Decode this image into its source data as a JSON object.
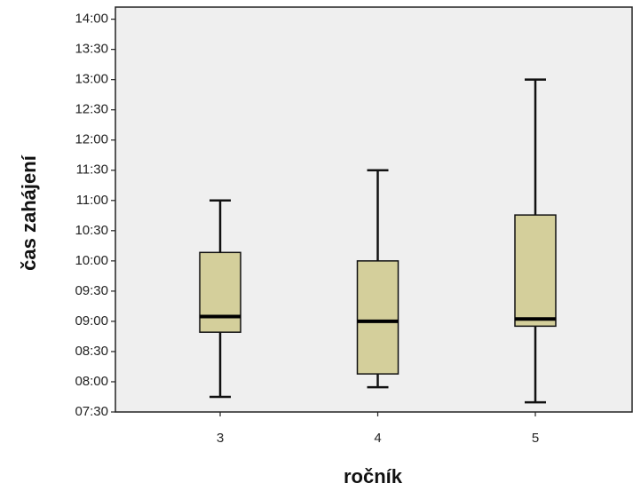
{
  "chart_data": {
    "type": "box",
    "x_label": "ročník",
    "y_label": "čas zahájení",
    "categories": [
      "3",
      "4",
      "5"
    ],
    "min": [
      7.75,
      7.91,
      7.66
    ],
    "q1": [
      8.82,
      8.13,
      8.92
    ],
    "median": [
      9.08,
      9.0,
      9.04
    ],
    "q3": [
      10.14,
      10.0,
      10.76
    ],
    "max": [
      11.0,
      11.5,
      13.0
    ],
    "color": "#d4cf9b",
    "ylim": [
      7.5,
      14.2
    ],
    "yticks": [
      {
        "value": 7.5,
        "label": "07:30"
      },
      {
        "value": 8,
        "label": "08:00"
      },
      {
        "value": 8.5,
        "label": "08:30"
      },
      {
        "value": 9,
        "label": "09:00"
      },
      {
        "value": 9.5,
        "label": "09:30"
      },
      {
        "value": 10,
        "label": "10:00"
      },
      {
        "value": 10.5,
        "label": "10:30"
      },
      {
        "value": 11,
        "label": "11:00"
      },
      {
        "value": 11.5,
        "label": "11:30"
      },
      {
        "value": 12,
        "label": "12:00"
      },
      {
        "value": 12.5,
        "label": "12:30"
      },
      {
        "value": 13,
        "label": "13:00"
      },
      {
        "value": 13.5,
        "label": "13:30"
      },
      {
        "value": 14,
        "label": "14:00"
      }
    ]
  }
}
